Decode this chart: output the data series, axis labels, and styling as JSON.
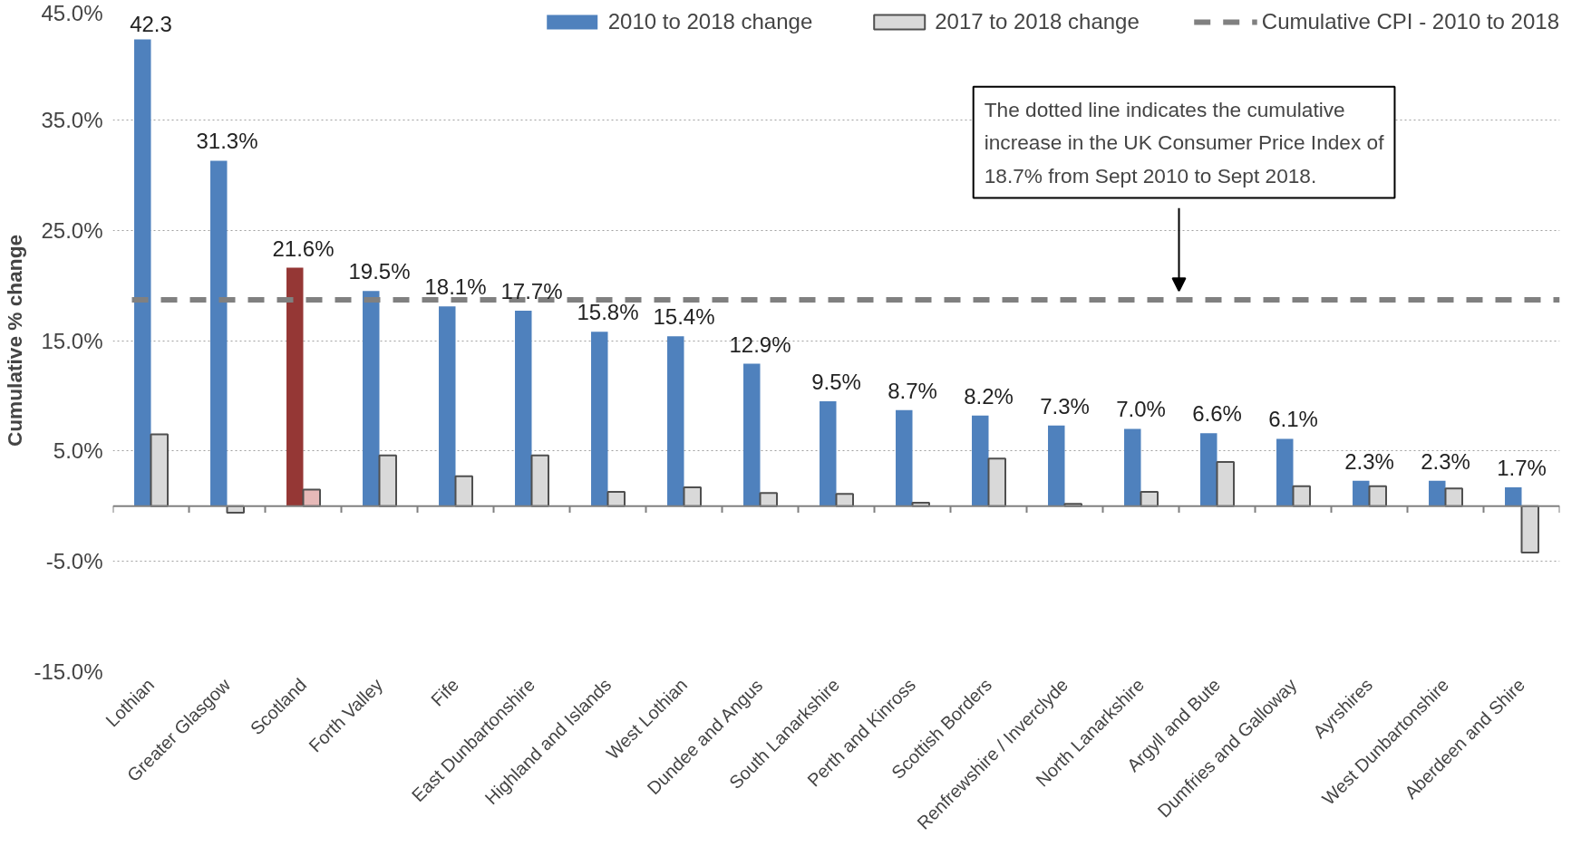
{
  "chart_data": {
    "type": "bar",
    "ylabel": "Cumulative % change",
    "categories": [
      "Lothian",
      "Greater Glasgow",
      "Scotland",
      "Forth Valley",
      "Fife",
      "East Dunbartonshire",
      "Highland and Islands",
      "West Lothian",
      "Dundee and Angus",
      "South Lanarkshire",
      "Perth and Kinross",
      "Scottish Borders",
      "Renfrewshire / Inverclyde",
      "North Lanarkshire",
      "Argyll and Bute",
      "Dumfries and Galloway",
      "Ayrshires",
      "West Dunbartonshire",
      "Aberdeen and Shire"
    ],
    "series": [
      {
        "name": "2010 to 2018 change",
        "color": "#4f81bd",
        "colors": [
          null,
          null,
          "#953735",
          null,
          null,
          null,
          null,
          null,
          null,
          null,
          null,
          null,
          null,
          null,
          null,
          null,
          null,
          null,
          null
        ],
        "values": [
          42.3,
          31.3,
          21.6,
          19.5,
          18.1,
          17.7,
          15.8,
          15.4,
          12.9,
          9.5,
          8.7,
          8.2,
          7.3,
          7.0,
          6.6,
          6.1,
          2.3,
          2.3,
          1.7
        ],
        "value_labels": [
          "42.3",
          "31.3%",
          "21.6%",
          "19.5%",
          "18.1%",
          "17.7%",
          "15.8%",
          "15.4%",
          "12.9%",
          "9.5%",
          "8.7%",
          "8.2%",
          "7.3%",
          "7.0%",
          "6.6%",
          "6.1%",
          "2.3%",
          "2.3%",
          "1.7%"
        ]
      },
      {
        "name": "2017 to 2018 change",
        "color": "#d9d9d9",
        "colors": [
          null,
          null,
          "#e6b9b8",
          null,
          null,
          null,
          null,
          null,
          null,
          null,
          null,
          null,
          null,
          null,
          null,
          null,
          null,
          null,
          null
        ],
        "values": [
          6.5,
          -0.6,
          1.5,
          4.6,
          2.7,
          4.6,
          1.3,
          1.7,
          1.2,
          1.1,
          0.3,
          4.3,
          0.2,
          1.3,
          4.0,
          1.8,
          1.8,
          1.6,
          -4.2
        ]
      }
    ],
    "ref_lines": [
      {
        "axis": "y",
        "value": 18.7,
        "label": "Cumulative CPI - 2010 to 2018",
        "color": "#808080",
        "line_style": "dashed"
      }
    ],
    "annotations": [
      "The dotted line indicates the cumulative increase in the UK Consumer Price Index of 18.7% from Sept 2010 to Sept 2018."
    ],
    "ylim": [
      -15,
      45
    ],
    "yticks": [
      {
        "value": -15,
        "label": "-15.0%"
      },
      {
        "value": -5,
        "label": "-5.0%"
      },
      {
        "value": 5,
        "label": "5.0%"
      },
      {
        "value": 15,
        "label": "15.0%"
      },
      {
        "value": 25,
        "label": "25.0%"
      },
      {
        "value": 35,
        "label": "35.0%"
      },
      {
        "value": 45,
        "label": "45.0%"
      }
    ],
    "grid": "y",
    "legend": "top"
  }
}
